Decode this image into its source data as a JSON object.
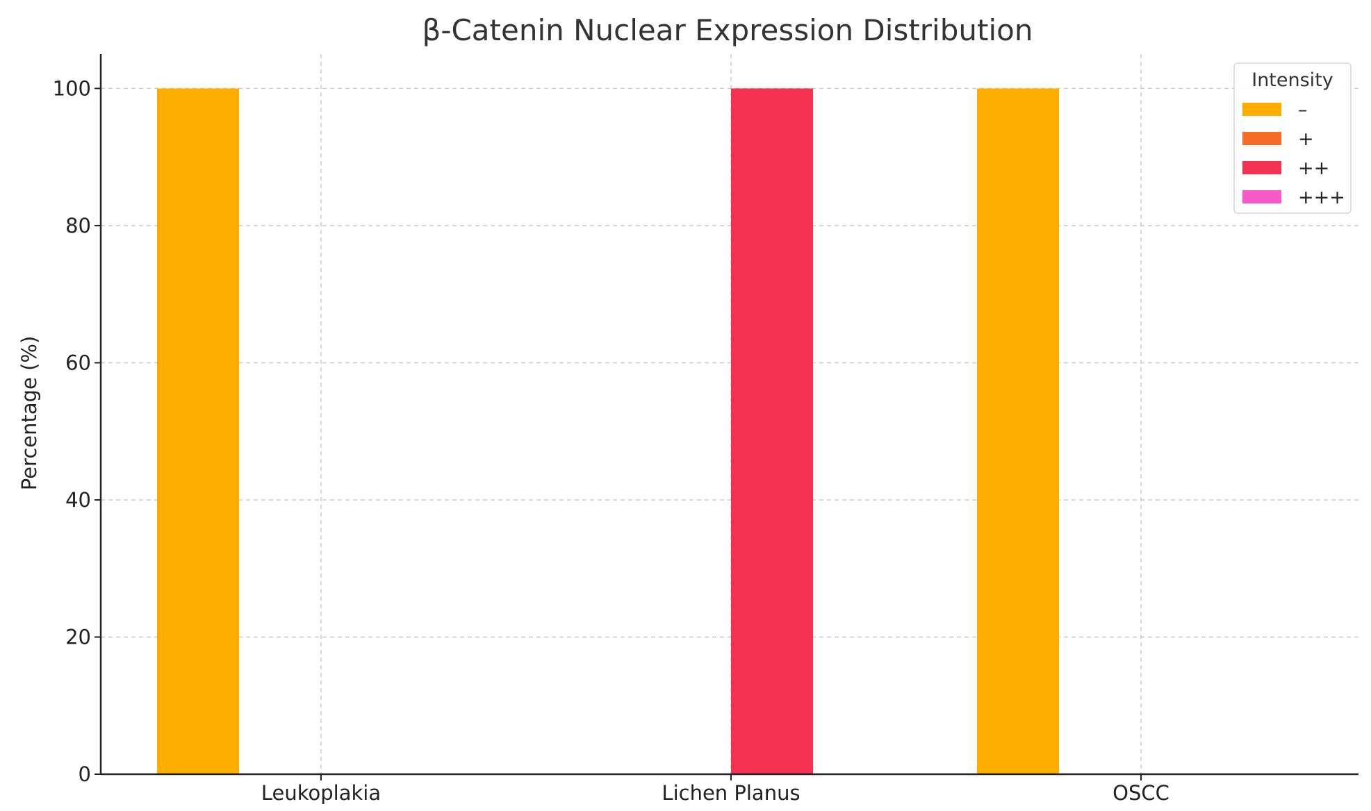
{
  "chart_data": {
    "type": "bar",
    "title": "β-Catenin Nuclear Expression Distribution",
    "xlabel": "",
    "ylabel": "Percentage (%)",
    "categories": [
      "Leukoplakia",
      "Lichen Planus",
      "OSCC"
    ],
    "series": [
      {
        "name": "–",
        "color": "#FFAE00",
        "values": [
          100,
          0,
          100
        ]
      },
      {
        "name": "+",
        "color": "#F86A28",
        "values": [
          0,
          0,
          0
        ]
      },
      {
        "name": "++",
        "color": "#F43150",
        "values": [
          0,
          100,
          0
        ]
      },
      {
        "name": "+++",
        "color": "#F75AC6",
        "values": [
          0,
          0,
          0
        ]
      }
    ],
    "ylim": [
      0,
      105
    ],
    "yticks": [
      0,
      20,
      40,
      60,
      80,
      100
    ],
    "grid": true,
    "legend": {
      "title": "Intensity",
      "placement": "top-right"
    }
  }
}
